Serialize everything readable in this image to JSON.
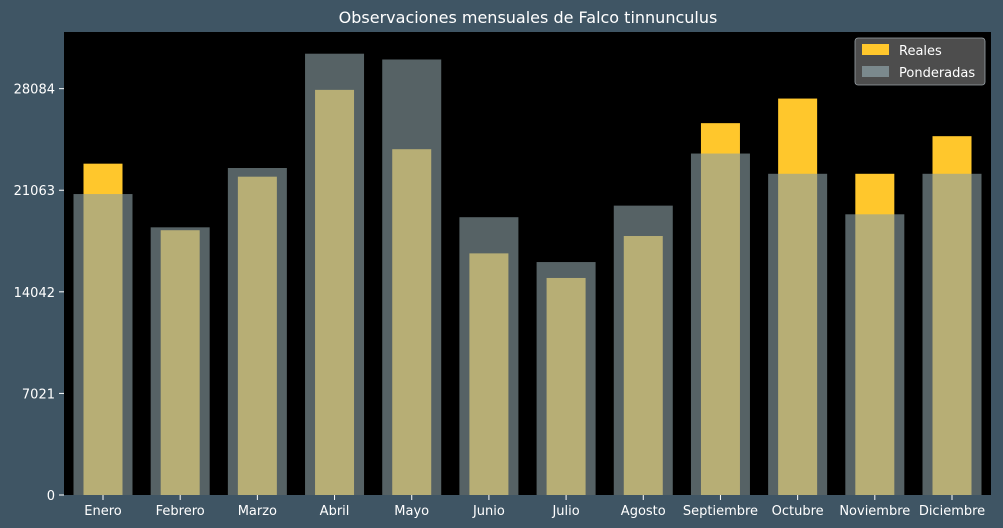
{
  "chart_data": {
    "type": "bar",
    "title": "Observaciones mensuales de Falco tinnunculus",
    "xlabel": "",
    "ylabel": "",
    "categories": [
      "Enero",
      "Febrero",
      "Marzo",
      "Abril",
      "Mayo",
      "Junio",
      "Julio",
      "Agosto",
      "Septiembre",
      "Octubre",
      "Noviembre",
      "Diciembre"
    ],
    "series": [
      {
        "name": "Reales",
        "color": "#ffc72c",
        "values": [
          22900,
          18300,
          22000,
          28000,
          23900,
          16700,
          15000,
          17900,
          25700,
          27400,
          22200,
          24800
        ]
      },
      {
        "name": "Ponderadas",
        "color": "#8b9ea3",
        "values": [
          20800,
          18500,
          22600,
          30500,
          30100,
          19200,
          16100,
          20000,
          23600,
          22200,
          19400,
          22200
        ]
      }
    ],
    "yticks": [
      0,
      7021,
      14042,
      21063,
      28084
    ],
    "ylim": [
      0,
      32000
    ],
    "legend": "top-right",
    "grid": false,
    "colors": {
      "background": "#3f5564",
      "plot_area": "#000000",
      "text": "#ffffff",
      "legend_box": "#555555"
    }
  }
}
